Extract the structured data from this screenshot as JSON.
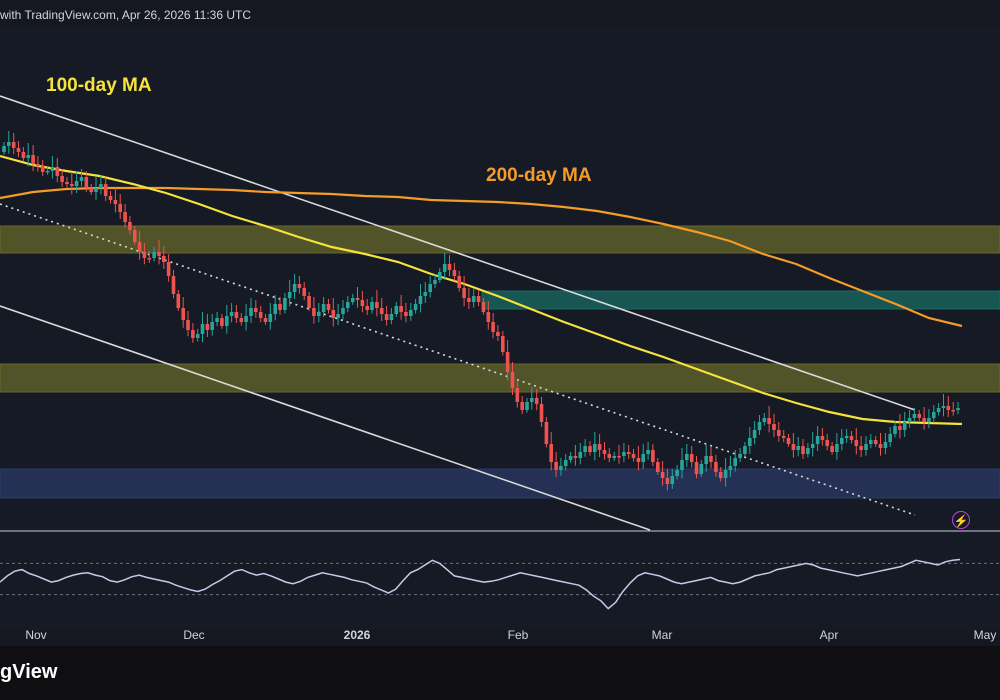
{
  "header": {
    "attribution": "with TradingView.com, Apr 26, 2026 11:36 UTC"
  },
  "footer": {
    "brand": "gView"
  },
  "colors": {
    "background": "#161a25",
    "bullish": "#26a69a",
    "bearish": "#ef5350",
    "ma100": "#f5e33b",
    "ma200": "#f39c28",
    "yellow_zone": "#66672a",
    "teal_zone": "#1a6b63",
    "blue_zone": "#2a3a66",
    "channel_lines": "#d9d9d9",
    "rsi_line": "#c4cbe8",
    "flash_icon": "#c042e0"
  },
  "chart_data": {
    "type": "candlestick",
    "x_axis": {
      "ticks": [
        {
          "label": "Nov",
          "bold": false
        },
        {
          "label": "Dec",
          "bold": false
        },
        {
          "label": "2026",
          "bold": true
        },
        {
          "label": "Feb",
          "bold": false
        },
        {
          "label": "Mar",
          "bold": false
        },
        {
          "label": "Apr",
          "bold": false
        },
        {
          "label": "May",
          "bold": false
        }
      ]
    },
    "annotations": {
      "ma100_label": "100-day MA",
      "ma200_label": "200-day MA"
    },
    "price_closes": [
      120,
      116,
      122,
      126,
      132,
      129,
      138,
      140,
      146,
      145,
      141,
      150,
      156,
      158,
      160,
      155,
      151,
      162,
      166,
      162,
      158,
      170,
      174,
      178,
      186,
      196,
      204,
      216,
      226,
      232,
      232,
      226,
      230,
      236,
      250,
      268,
      282,
      294,
      304,
      312,
      308,
      298,
      304,
      296,
      292,
      300,
      290,
      286,
      292,
      296,
      290,
      282,
      286,
      292,
      296,
      288,
      278,
      284,
      272,
      266,
      258,
      262,
      270,
      282,
      290,
      286,
      278,
      284,
      292,
      288,
      282,
      276,
      272,
      274,
      280,
      284,
      276,
      282,
      288,
      294,
      288,
      280,
      286,
      290,
      284,
      278,
      270,
      266,
      258,
      254,
      246,
      238,
      244,
      250,
      262,
      272,
      276,
      270,
      276,
      286,
      296,
      306,
      310,
      326,
      346,
      362,
      376,
      384,
      376,
      372,
      378,
      396,
      418,
      436,
      444,
      440,
      434,
      430,
      432,
      426,
      420,
      426,
      418,
      424,
      428,
      432,
      430,
      430,
      426,
      428,
      432,
      436,
      428,
      424,
      436,
      446,
      452,
      458,
      450,
      444,
      434,
      428,
      436,
      448,
      438,
      430,
      436,
      446,
      452,
      444,
      440,
      432,
      428,
      420,
      412,
      404,
      396,
      392,
      398,
      404,
      410,
      412,
      418,
      424,
      420,
      428,
      422,
      418,
      410,
      414,
      420,
      426,
      418,
      412,
      410,
      414,
      420,
      424,
      418,
      414,
      418,
      422,
      416,
      408,
      400,
      404,
      396,
      392,
      388,
      392,
      396,
      392,
      386,
      382,
      380,
      384,
      384,
      382
    ],
    "ma100": [
      130,
      139,
      145,
      150,
      158,
      167,
      178,
      190,
      200,
      211,
      221,
      228,
      236,
      248,
      258,
      270,
      283,
      296,
      308,
      320,
      331,
      343,
      355,
      367,
      377,
      386,
      393,
      396,
      397,
      398
    ],
    "ma200": [
      172,
      166,
      163,
      162,
      162,
      162,
      163,
      164,
      166,
      167,
      168,
      170,
      171,
      174,
      175,
      176,
      178,
      181,
      185,
      191,
      198,
      206,
      215,
      228,
      238,
      252,
      265,
      278,
      292,
      300
    ],
    "channel_upper": {
      "start": [
        0,
        80
      ],
      "end": [
        54,
        391
      ]
    },
    "channel_middle": {
      "start": [
        0,
        180
      ],
      "end": [
        122,
        475
      ]
    },
    "channel_lower": {
      "start": [
        0,
        283
      ],
      "end": [
        64,
        505
      ]
    },
    "zones": [
      {
        "name": "upper-resistance-zone",
        "y_top": 200,
        "y_bottom": 227
      },
      {
        "name": "fvg-zone",
        "y_top": 265,
        "y_bottom": 283
      },
      {
        "name": "current-resistance-zone",
        "y_top": 338,
        "y_bottom": 366
      },
      {
        "name": "support-zone",
        "y_top": 443,
        "y_bottom": 472
      }
    ],
    "rsi": {
      "values": [
        46,
        54,
        60,
        62,
        57,
        54,
        50,
        46,
        48,
        52,
        55,
        57,
        58,
        55,
        53,
        48,
        46,
        49,
        53,
        55,
        52,
        50,
        48,
        46,
        42,
        39,
        36,
        34,
        37,
        43,
        48,
        54,
        60,
        62,
        58,
        55,
        57,
        54,
        50,
        46,
        44,
        47,
        52,
        55,
        58,
        56,
        54,
        52,
        49,
        47,
        45,
        40,
        36,
        32,
        37,
        48,
        58,
        62,
        68,
        74,
        70,
        62,
        54,
        52,
        50,
        48,
        46,
        47,
        49,
        52,
        55,
        58,
        56,
        54,
        52,
        50,
        48,
        46,
        44,
        42,
        36,
        28,
        22,
        12,
        20,
        34,
        45,
        54,
        58,
        56,
        54,
        50,
        46,
        44,
        46,
        48,
        50,
        52,
        48,
        46,
        44,
        46,
        50,
        54,
        56,
        58,
        62,
        64,
        66,
        68,
        70,
        68,
        64,
        62,
        60,
        58,
        56,
        54,
        56,
        58,
        60,
        62,
        64,
        66,
        70,
        74,
        72,
        70,
        68,
        72,
        74,
        75
      ],
      "levels": [
        70,
        30
      ]
    },
    "y_range": [
      0,
      604
    ],
    "legend": "none"
  }
}
